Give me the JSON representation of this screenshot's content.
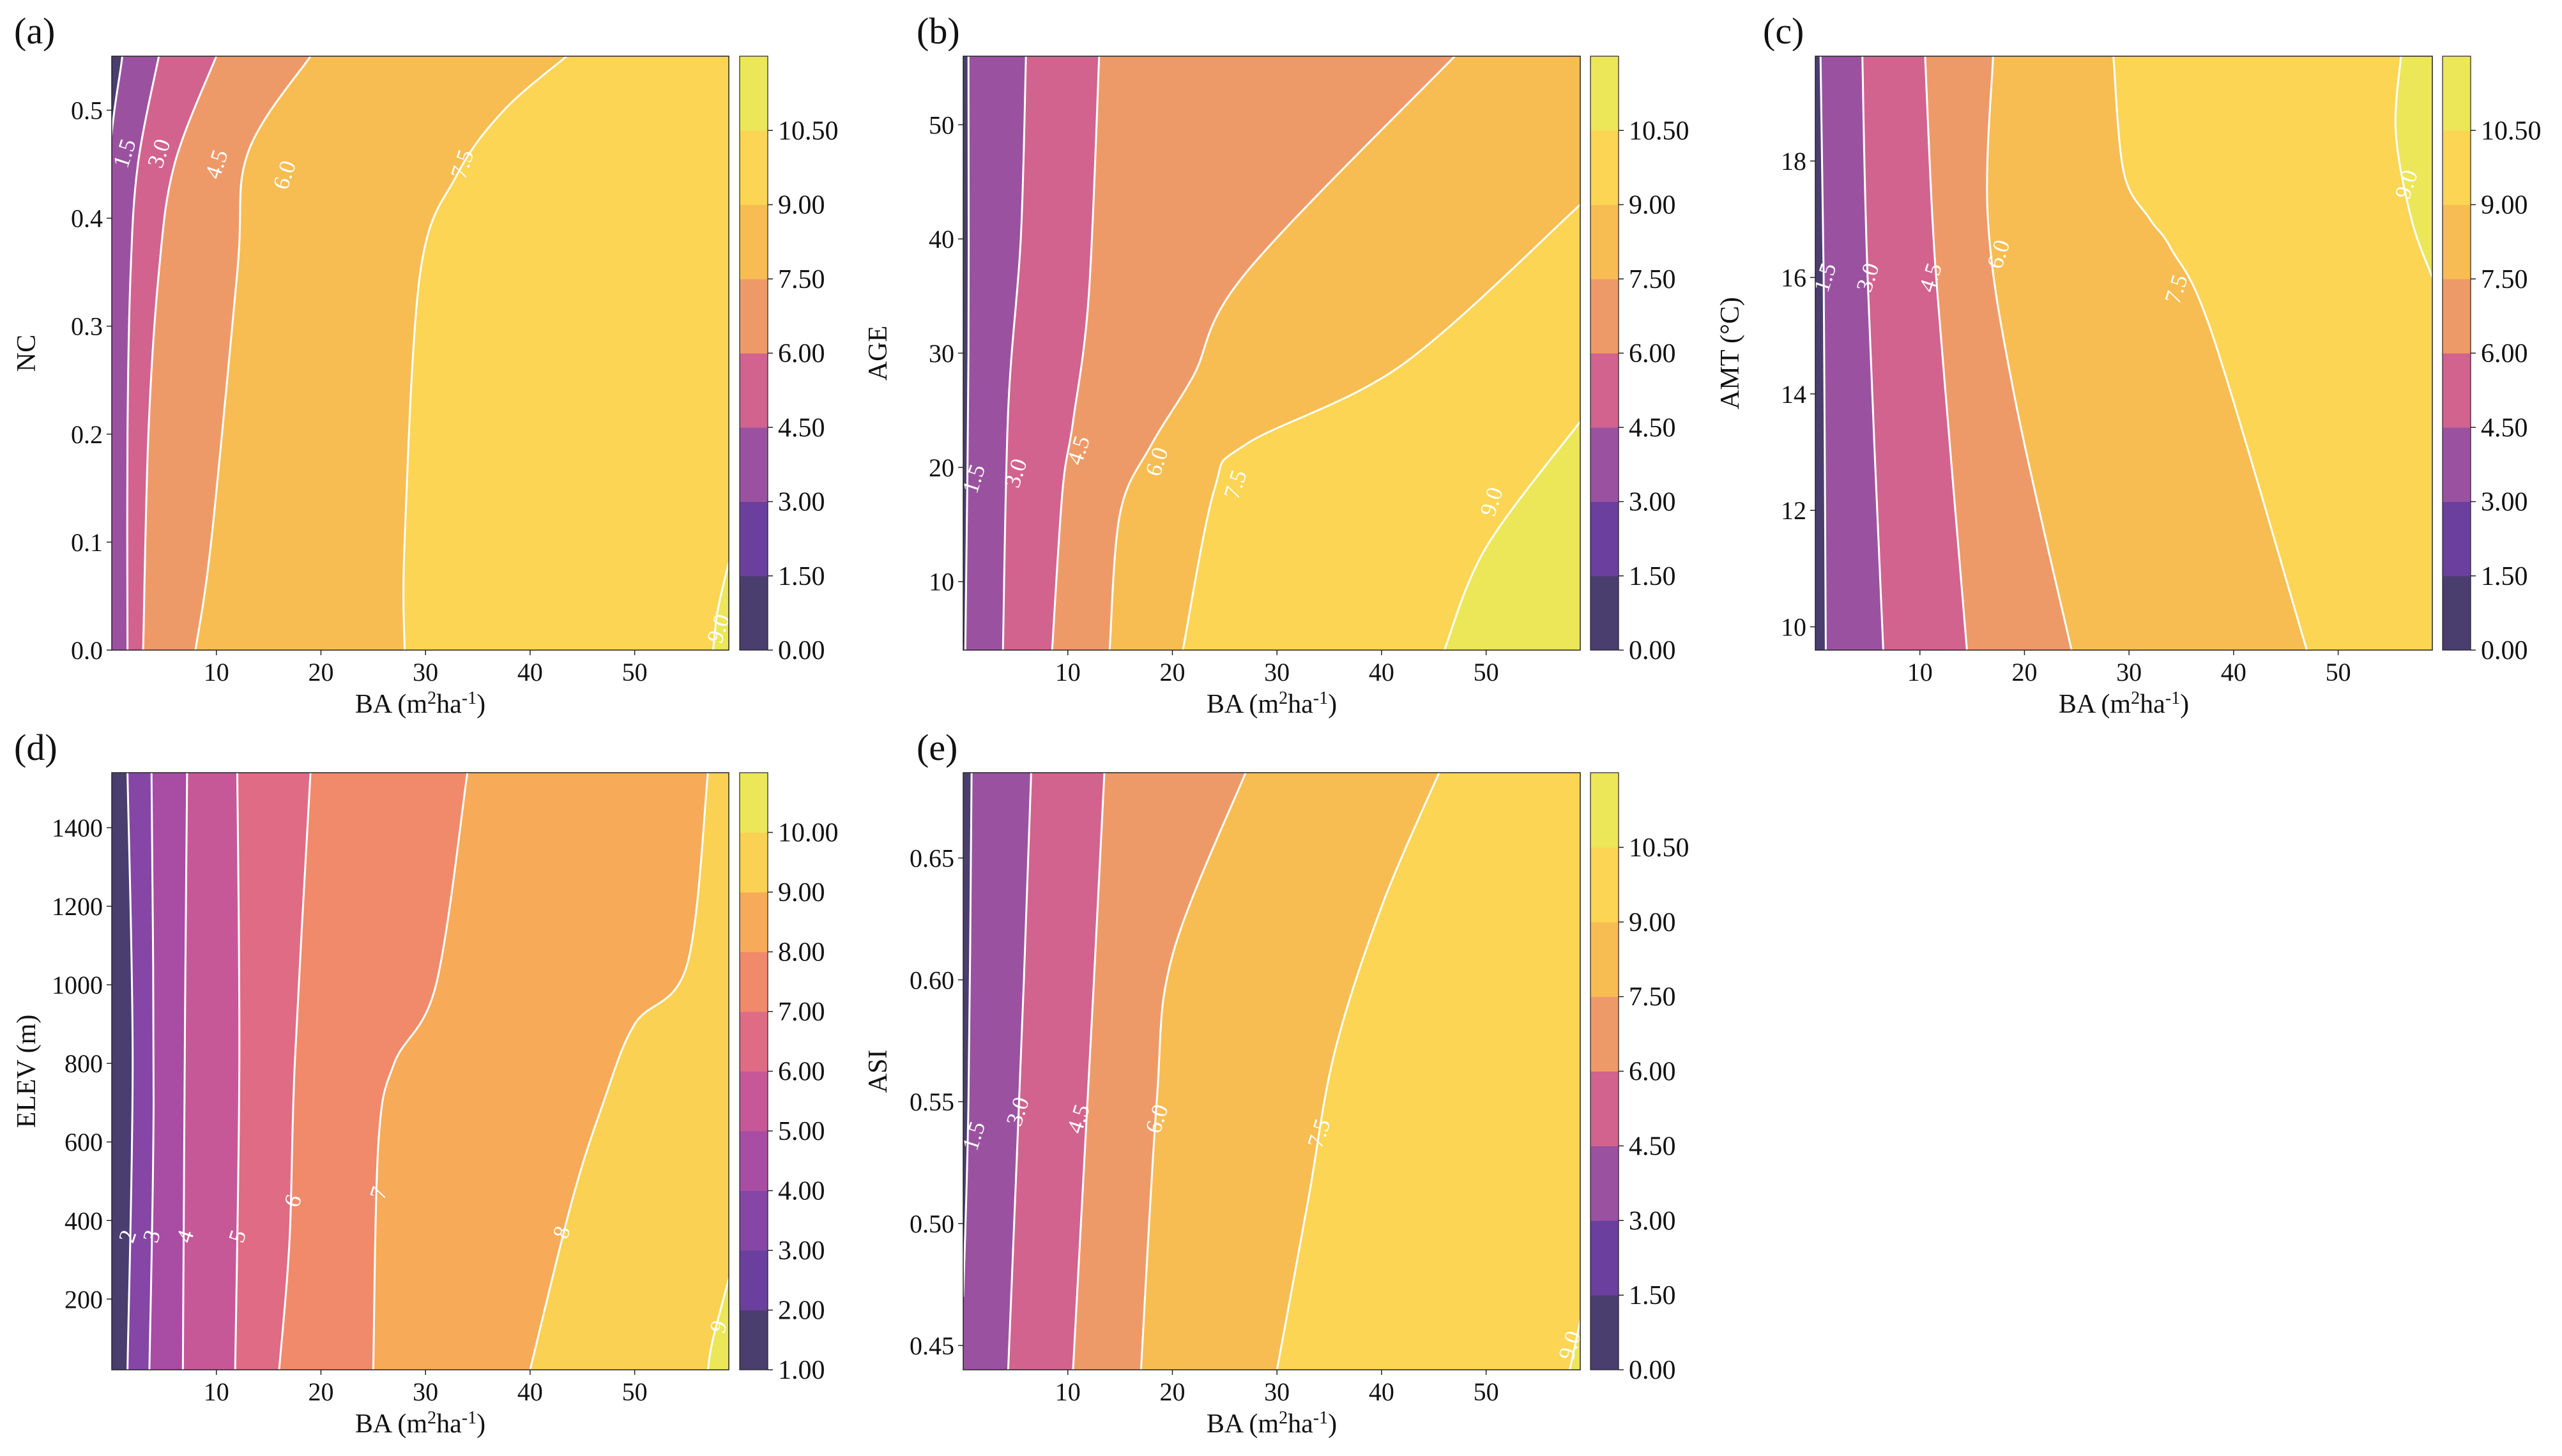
{
  "figure": {
    "panels": [
      "a",
      "b",
      "c",
      "d",
      "e"
    ]
  },
  "chart_data": [
    {
      "panel_label": "(a)",
      "type": "contour",
      "xlabel": "BA (m2ha-1)",
      "ylabel": "NC",
      "xlim": [
        0,
        59
      ],
      "ylim": [
        0,
        0.55
      ],
      "xticks": [
        "10",
        "20",
        "30",
        "40",
        "50"
      ],
      "yticks": [
        "0.0",
        "0.1",
        "0.2",
        "0.3",
        "0.4",
        "0.5"
      ],
      "colorbar_ticks": [
        "0.00",
        "1.50",
        "3.00",
        "4.50",
        "6.00",
        "7.50",
        "9.00",
        "10.50"
      ],
      "colors": [
        "#4a3e6e",
        "#6a3f9e",
        "#9a52a0",
        "#d1638e",
        "#ee9a68",
        "#f7bd52",
        "#fcd554",
        "#ece659"
      ],
      "contour_lines": [
        {
          "level": "1.5",
          "points": [
            [
              1.0,
              0.55
            ],
            [
              -0.5,
              0.4
            ],
            [
              -0.5,
              0.0
            ]
          ]
        },
        {
          "level": "3.0",
          "points": [
            [
              4.5,
              0.55
            ],
            [
              2.5,
              0.45
            ],
            [
              1.8,
              0.35
            ],
            [
              1.5,
              0.2
            ],
            [
              1.5,
              0.0
            ]
          ]
        },
        {
          "level": "4.5",
          "points": [
            [
              10.0,
              0.55
            ],
            [
              6.0,
              0.45
            ],
            [
              4.5,
              0.35
            ],
            [
              3.5,
              0.2
            ],
            [
              3.0,
              0.0
            ]
          ]
        },
        {
          "level": "6.0",
          "points": [
            [
              19.0,
              0.55
            ],
            [
              13.0,
              0.46
            ],
            [
              12.0,
              0.35
            ],
            [
              9.5,
              0.1
            ],
            [
              8.0,
              0.0
            ]
          ]
        },
        {
          "level": "7.5",
          "points": [
            [
              43.5,
              0.55
            ],
            [
              37.5,
              0.5
            ],
            [
              33.0,
              0.44
            ],
            [
              29.5,
              0.35
            ],
            [
              28.0,
              0.1
            ],
            [
              28.0,
              0.0
            ]
          ]
        },
        {
          "level": "9.0",
          "points": [
            [
              59.5,
              0.1
            ],
            [
              58.0,
              0.04
            ],
            [
              57.5,
              0.0
            ]
          ]
        }
      ],
      "contour_labels": [
        {
          "text": "1.5",
          "x": 1.2,
          "y": 0.46
        },
        {
          "text": "3.0",
          "x": 4.5,
          "y": 0.46
        },
        {
          "text": "4.5",
          "x": 10.0,
          "y": 0.45
        },
        {
          "text": "6.0",
          "x": 16.5,
          "y": 0.44
        },
        {
          "text": "7.5",
          "x": 33.5,
          "y": 0.45
        },
        {
          "text": "9.0",
          "x": 58.0,
          "y": 0.02
        }
      ]
    },
    {
      "panel_label": "(b)",
      "type": "contour",
      "xlabel": "BA (m2ha-1)",
      "ylabel": "AGE",
      "xlim": [
        0,
        59
      ],
      "ylim": [
        4,
        56
      ],
      "xticks": [
        "10",
        "20",
        "30",
        "40",
        "50"
      ],
      "yticks": [
        "10",
        "20",
        "30",
        "40",
        "50"
      ],
      "colorbar_ticks": [
        "0.00",
        "1.50",
        "3.00",
        "4.50",
        "6.00",
        "7.50",
        "9.00",
        "10.50"
      ],
      "colors": [
        "#4a3e6e",
        "#6a3f9e",
        "#9a52a0",
        "#d1638e",
        "#ee9a68",
        "#f7bd52",
        "#fcd554",
        "#ece659"
      ],
      "contour_lines": [
        {
          "level": "1.5",
          "points": [
            [
              0.5,
              56
            ],
            [
              0.5,
              30
            ],
            [
              0.2,
              4
            ]
          ]
        },
        {
          "level": "3.0",
          "points": [
            [
              6.0,
              56
            ],
            [
              5.5,
              40
            ],
            [
              4.3,
              25
            ],
            [
              3.8,
              4
            ]
          ]
        },
        {
          "level": "4.5",
          "points": [
            [
              13.0,
              56
            ],
            [
              12.0,
              35
            ],
            [
              10.5,
              24
            ],
            [
              9.5,
              18
            ],
            [
              8.5,
              4
            ]
          ]
        },
        {
          "level": "6.0",
          "points": [
            [
              47.0,
              56
            ],
            [
              27.0,
              37
            ],
            [
              22.0,
              28
            ],
            [
              18.0,
              22
            ],
            [
              15.0,
              16
            ],
            [
              14.0,
              4
            ]
          ]
        },
        {
          "level": "7.5",
          "points": [
            [
              59.0,
              43
            ],
            [
              42.0,
              29
            ],
            [
              27.0,
              22
            ],
            [
              24.0,
              18
            ],
            [
              21.0,
              4
            ]
          ]
        },
        {
          "level": "9.0",
          "points": [
            [
              59.0,
              24
            ],
            [
              50.0,
              13
            ],
            [
              46.0,
              4
            ]
          ]
        }
      ],
      "contour_labels": [
        {
          "text": "1.5",
          "x": 1.0,
          "y": 19
        },
        {
          "text": "3.0",
          "x": 5.0,
          "y": 19.5
        },
        {
          "text": "4.5",
          "x": 11.0,
          "y": 21.5
        },
        {
          "text": "6.0",
          "x": 18.5,
          "y": 20.5
        },
        {
          "text": "7.5",
          "x": 26.0,
          "y": 18.5
        },
        {
          "text": "9.0",
          "x": 50.5,
          "y": 17
        }
      ]
    },
    {
      "panel_label": "(c)",
      "type": "contour",
      "xlabel": "BA (m2ha-1)",
      "ylabel": "AMT (°C)",
      "xlim": [
        0,
        59
      ],
      "ylim": [
        9.6,
        19.8
      ],
      "xticks": [
        "10",
        "20",
        "30",
        "40",
        "50"
      ],
      "yticks": [
        "10",
        "12",
        "14",
        "16",
        "18"
      ],
      "colorbar_ticks": [
        "0.00",
        "1.50",
        "3.00",
        "4.50",
        "6.00",
        "7.50",
        "9.00",
        "10.50"
      ],
      "colors": [
        "#4a3e6e",
        "#6a3f9e",
        "#9a52a0",
        "#d1638e",
        "#ee9a68",
        "#f7bd52",
        "#fcd554",
        "#ece659"
      ],
      "contour_lines": [
        {
          "level": "1.5",
          "points": [
            [
              0.5,
              19.8
            ],
            [
              0.8,
              16
            ],
            [
              1.0,
              9.6
            ]
          ]
        },
        {
          "level": "3.0",
          "points": [
            [
              4.5,
              19.8
            ],
            [
              5.0,
              16
            ],
            [
              6.5,
              9.6
            ]
          ]
        },
        {
          "level": "4.5",
          "points": [
            [
              10.5,
              19.8
            ],
            [
              11.2,
              17
            ],
            [
              12.0,
              15
            ],
            [
              14.5,
              9.6
            ]
          ]
        },
        {
          "level": "6.0",
          "points": [
            [
              17.0,
              19.8
            ],
            [
              16.5,
              17
            ],
            [
              19.0,
              14
            ],
            [
              24.5,
              9.6
            ]
          ]
        },
        {
          "level": "7.5",
          "points": [
            [
              28.5,
              19.8
            ],
            [
              29.5,
              17.8
            ],
            [
              32.0,
              17
            ],
            [
              34.0,
              16.5
            ],
            [
              38.0,
              15
            ],
            [
              47.0,
              9.6
            ]
          ]
        },
        {
          "level": "9.0",
          "points": [
            [
              56.0,
              19.8
            ],
            [
              55.5,
              18.5
            ],
            [
              57.0,
              17
            ],
            [
              59.0,
              16
            ]
          ]
        }
      ],
      "contour_labels": [
        {
          "text": "1.5",
          "x": 0.9,
          "y": 16
        },
        {
          "text": "3.0",
          "x": 5.0,
          "y": 16
        },
        {
          "text": "4.5",
          "x": 11.0,
          "y": 16
        },
        {
          "text": "6.0",
          "x": 17.5,
          "y": 16.4
        },
        {
          "text": "7.5",
          "x": 34.5,
          "y": 15.8
        },
        {
          "text": "9.0",
          "x": 56.5,
          "y": 17.6
        }
      ]
    },
    {
      "panel_label": "(d)",
      "type": "contour",
      "xlabel": "BA (m2ha-1)",
      "ylabel": "ELEV (m)",
      "xlim": [
        0,
        59
      ],
      "ylim": [
        20,
        1540
      ],
      "xticks": [
        "10",
        "20",
        "30",
        "40",
        "50"
      ],
      "yticks": [
        "200",
        "400",
        "600",
        "800",
        "1000",
        "1200",
        "1400"
      ],
      "colorbar_ticks": [
        "1.00",
        "2.00",
        "3.00",
        "4.00",
        "5.00",
        "6.00",
        "7.00",
        "8.00",
        "9.00",
        "10.00"
      ],
      "colors": [
        "#4a3e6e",
        "#6a3f9e",
        "#8546a6",
        "#a94ca4",
        "#c65898",
        "#df6b84",
        "#f08a6a",
        "#f7aa58",
        "#fad152",
        "#ece659"
      ],
      "contour_lines": [
        {
          "level": "2",
          "points": [
            [
              1.5,
              1540
            ],
            [
              2.0,
              800
            ],
            [
              1.5,
              20
            ]
          ]
        },
        {
          "level": "3",
          "points": [
            [
              3.8,
              1540
            ],
            [
              4.0,
              700
            ],
            [
              3.6,
              20
            ]
          ]
        },
        {
          "level": "4",
          "points": [
            [
              7.2,
              1540
            ],
            [
              7.0,
              900
            ],
            [
              6.8,
              20
            ]
          ]
        },
        {
          "level": "5",
          "points": [
            [
              12.0,
              1540
            ],
            [
              12.2,
              800
            ],
            [
              11.8,
              20
            ]
          ]
        },
        {
          "level": "6",
          "points": [
            [
              19.0,
              1540
            ],
            [
              17.5,
              800
            ],
            [
              17.0,
              350
            ],
            [
              16.0,
              20
            ]
          ]
        },
        {
          "level": "7",
          "points": [
            [
              34.0,
              1540
            ],
            [
              31.0,
              1000
            ],
            [
              27.0,
              800
            ],
            [
              25.5,
              600
            ],
            [
              25.0,
              20
            ]
          ]
        },
        {
          "level": "8",
          "points": [
            [
              57.0,
              1540
            ],
            [
              55.0,
              1050
            ],
            [
              50.0,
              900
            ],
            [
              47.0,
              700
            ],
            [
              44.0,
              450
            ],
            [
              40.0,
              20
            ]
          ]
        },
        {
          "level": "9",
          "points": [
            [
              59.5,
              300
            ],
            [
              57.5,
              100
            ],
            [
              57.0,
              20
            ]
          ]
        }
      ],
      "contour_labels": [
        {
          "text": "2",
          "x": 1.5,
          "y": 360
        },
        {
          "text": "3",
          "x": 3.8,
          "y": 360
        },
        {
          "text": "4",
          "x": 7.0,
          "y": 360
        },
        {
          "text": "5",
          "x": 12.0,
          "y": 360
        },
        {
          "text": "6",
          "x": 17.3,
          "y": 450
        },
        {
          "text": "7",
          "x": 25.5,
          "y": 470
        },
        {
          "text": "8",
          "x": 43.0,
          "y": 370
        },
        {
          "text": "9",
          "x": 58.0,
          "y": 130
        }
      ]
    },
    {
      "panel_label": "(e)",
      "type": "contour",
      "xlabel": "BA (m2ha-1)",
      "ylabel": "ASI",
      "xlim": [
        0,
        59
      ],
      "ylim": [
        0.44,
        0.685
      ],
      "xticks": [
        "10",
        "20",
        "30",
        "40",
        "50"
      ],
      "yticks": [
        "0.45",
        "0.50",
        "0.55",
        "0.60",
        "0.65"
      ],
      "colorbar_ticks": [
        "0.00",
        "1.50",
        "3.00",
        "4.50",
        "6.00",
        "7.50",
        "9.00",
        "10.50"
      ],
      "colors": [
        "#4a3e6e",
        "#6a3f9e",
        "#9a52a0",
        "#d1638e",
        "#ee9a68",
        "#f7bd52",
        "#fcd554",
        "#ece659"
      ],
      "contour_lines": [
        {
          "level": "1.5",
          "points": [
            [
              0.8,
              0.685
            ],
            [
              0.5,
              0.55
            ],
            [
              0.0,
              0.47
            ]
          ]
        },
        {
          "level": "3.0",
          "points": [
            [
              6.5,
              0.685
            ],
            [
              5.8,
              0.6
            ],
            [
              4.3,
              0.44
            ]
          ]
        },
        {
          "level": "4.5",
          "points": [
            [
              13.5,
              0.685
            ],
            [
              12.5,
              0.6
            ],
            [
              10.5,
              0.44
            ]
          ]
        },
        {
          "level": "6.0",
          "points": [
            [
              27.0,
              0.685
            ],
            [
              20.0,
              0.61
            ],
            [
              18.5,
              0.55
            ],
            [
              17.0,
              0.44
            ]
          ]
        },
        {
          "level": "7.5",
          "points": [
            [
              45.5,
              0.685
            ],
            [
              40.0,
              0.63
            ],
            [
              35.5,
              0.57
            ],
            [
              33.0,
              0.51
            ],
            [
              30.0,
              0.44
            ]
          ]
        },
        {
          "level": "9.0",
          "points": [
            [
              59.5,
              0.47
            ],
            [
              58.5,
              0.45
            ],
            [
              58.0,
              0.44
            ]
          ]
        }
      ],
      "contour_labels": [
        {
          "text": "1.5",
          "x": 1.0,
          "y": 0.536
        },
        {
          "text": "3.0",
          "x": 5.2,
          "y": 0.546
        },
        {
          "text": "4.5",
          "x": 11.0,
          "y": 0.543
        },
        {
          "text": "6.0",
          "x": 18.5,
          "y": 0.543
        },
        {
          "text": "7.5",
          "x": 34.0,
          "y": 0.537
        },
        {
          "text": "9.0",
          "x": 58.0,
          "y": 0.45
        }
      ]
    }
  ]
}
